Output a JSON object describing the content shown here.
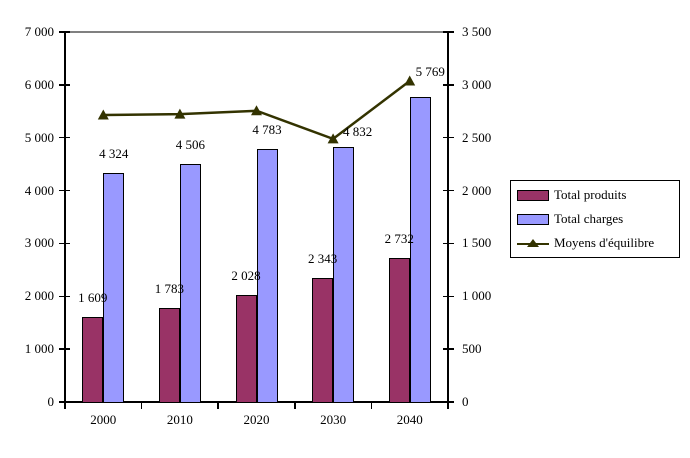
{
  "chart_data": {
    "type": "bar",
    "title": "",
    "xlabel": "",
    "ylabel": "",
    "categories": [
      "2000",
      "2010",
      "2020",
      "2030",
      "2040"
    ],
    "series": [
      {
        "name": "Total produits",
        "type": "bar",
        "axis": "left",
        "color": "#993366",
        "values": [
          1609,
          1783,
          2028,
          2343,
          2732
        ],
        "data_labels": [
          "1 609",
          "1 783",
          "2 028",
          "2 343",
          "2 732"
        ]
      },
      {
        "name": "Total charges",
        "type": "bar",
        "axis": "left",
        "color": "#9999FF",
        "values": [
          4324,
          4506,
          4783,
          4832,
          5769
        ],
        "data_labels": [
          "4 324",
          "4 506",
          "4 783",
          "4 832",
          "5 769"
        ]
      },
      {
        "name": "Moyens d'équilibre",
        "type": "line",
        "axis": "right",
        "color": "#333300",
        "marker": "triangle",
        "values": [
          2715,
          2723,
          2755,
          2489,
          3037
        ]
      }
    ],
    "left_axis": {
      "min": 0,
      "max": 7000,
      "step": 1000,
      "tick_labels": [
        "0",
        "1 000",
        "2 000",
        "3 000",
        "4 000",
        "5 000",
        "6 000",
        "7 000"
      ]
    },
    "right_axis": {
      "min": 0,
      "max": 3500,
      "step": 500,
      "tick_labels": [
        "0",
        "500",
        "1 000",
        "1 500",
        "2 000",
        "2 500",
        "3 000",
        "3 500"
      ]
    },
    "grid": false,
    "legend_position": "right",
    "colors": {
      "background": "#ffffff",
      "axis": "#000000",
      "plot_top_border": "#808080",
      "produits": "#993366",
      "charges": "#9999FF",
      "line": "#333300"
    }
  }
}
